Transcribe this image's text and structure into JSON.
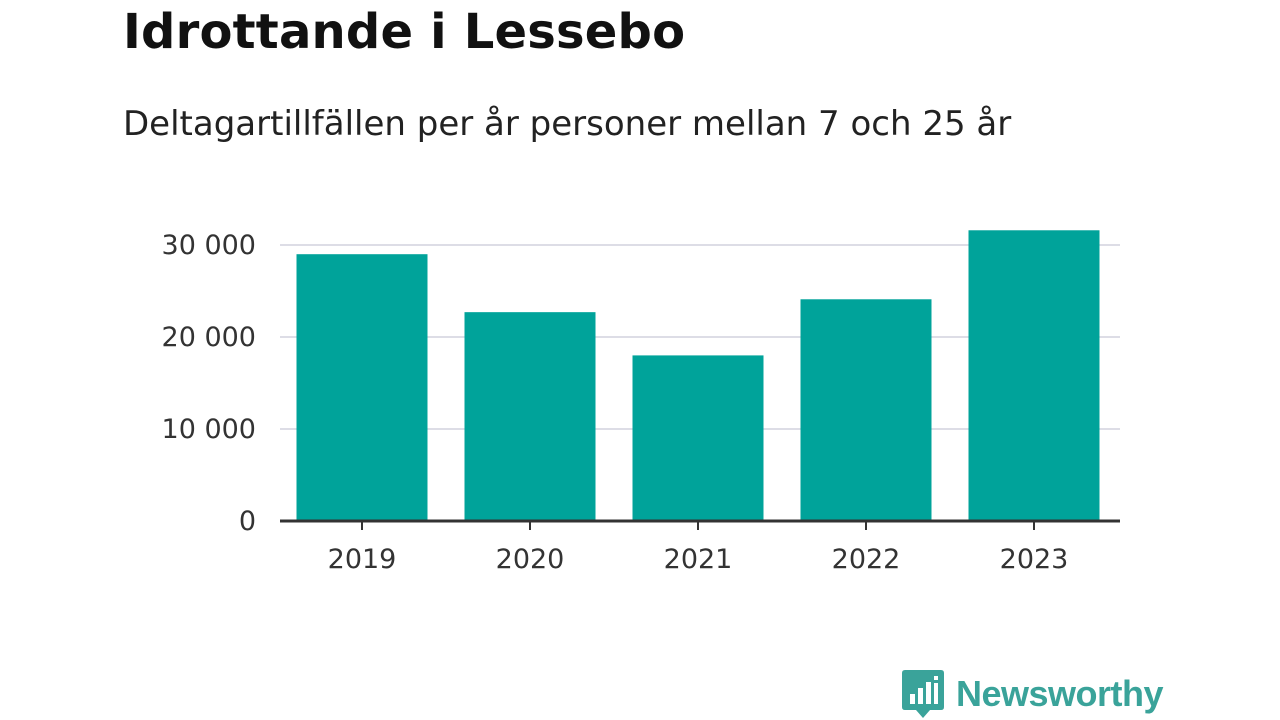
{
  "colors": {
    "bar": "#00a39a",
    "grid": "#dddde6",
    "axis": "#333333",
    "brand": "#3aa39a"
  },
  "brand": {
    "name": "Newsworthy",
    "icon": "bar-chart-speech-bubble-icon"
  },
  "chart_data": {
    "type": "bar",
    "title": "Idrottande i Lessebo",
    "subtitle": "Deltagartillfällen per år personer mellan 7 och 25 år",
    "categories": [
      "2019",
      "2020",
      "2021",
      "2022",
      "2023"
    ],
    "values": [
      29000,
      22700,
      18000,
      24100,
      31600
    ],
    "ylim": [
      0,
      30000
    ],
    "yticks": [
      0,
      10000,
      20000,
      30000
    ],
    "ytick_labels": [
      "0",
      "10 000",
      "20 000",
      "30 000"
    ],
    "grid": true,
    "legend": "none"
  }
}
